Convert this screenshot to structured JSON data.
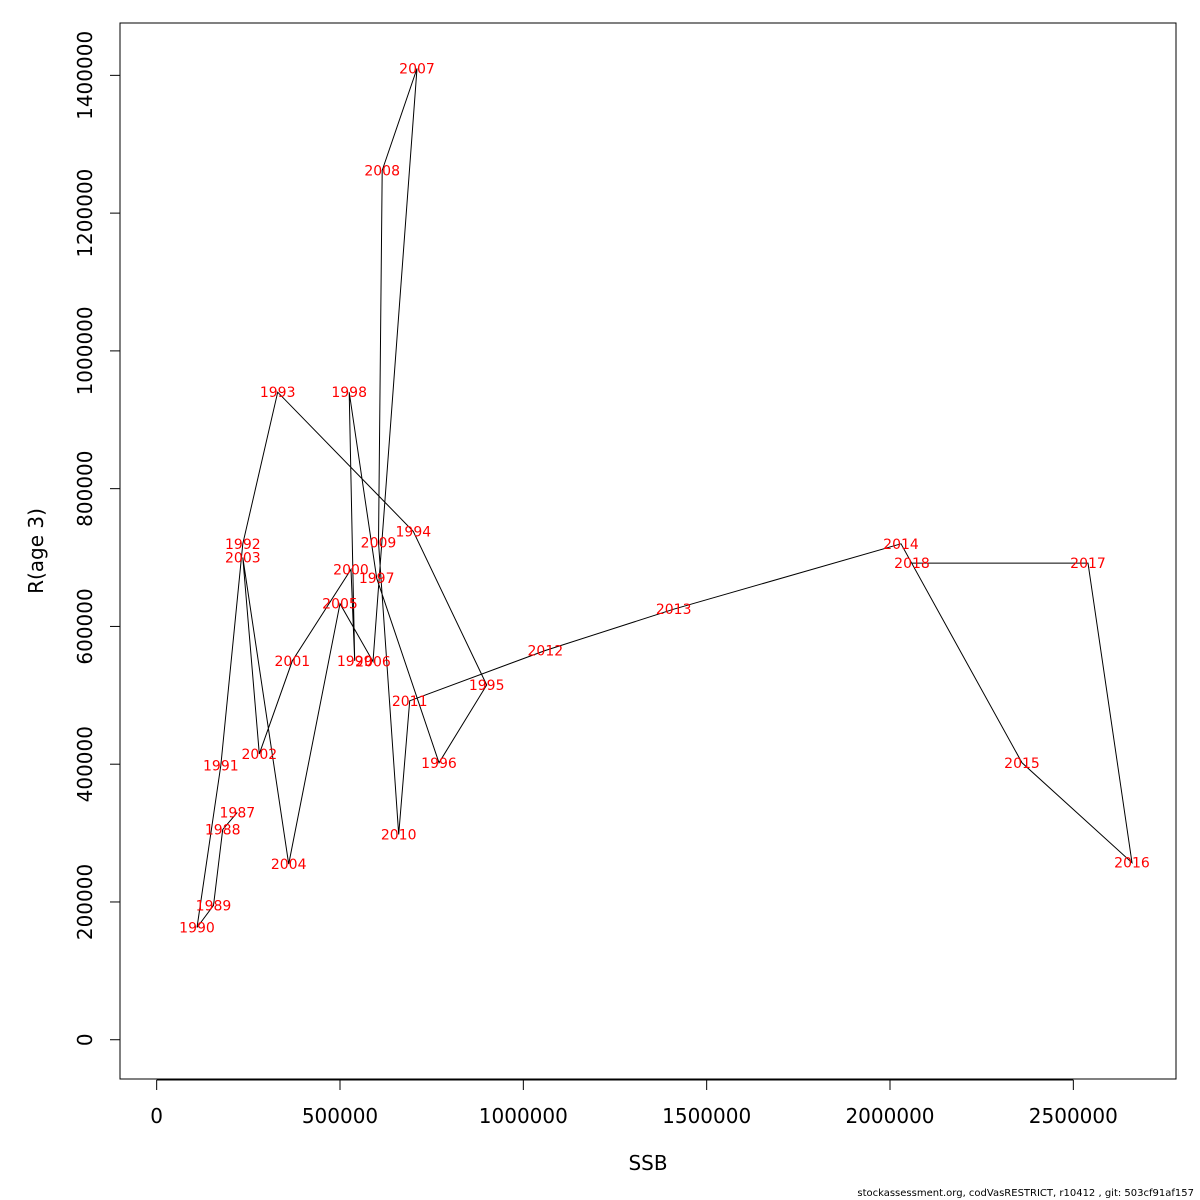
{
  "footer": "stockassessment.org, codVasRESTRICT, r10412 , git: 503cf91af157",
  "chart_data": {
    "type": "line",
    "title": "",
    "xlabel": "SSB",
    "ylabel": "R(age 3)",
    "xlim": [
      -100000,
      2780000
    ],
    "ylim": [
      -57000,
      1476000
    ],
    "xticks": [
      0,
      500000,
      1000000,
      1500000,
      2000000,
      2500000
    ],
    "yticks": [
      0,
      200000,
      400000,
      600000,
      800000,
      1000000,
      1200000,
      1400000
    ],
    "line_color": "#000000",
    "label_color": "#ff0000",
    "points": [
      {
        "year": "1987",
        "x": 220000,
        "y": 330000
      },
      {
        "year": "1988",
        "x": 180000,
        "y": 305000
      },
      {
        "year": "1989",
        "x": 155000,
        "y": 195000
      },
      {
        "year": "1990",
        "x": 110000,
        "y": 163000
      },
      {
        "year": "1991",
        "x": 175000,
        "y": 398000
      },
      {
        "year": "1992",
        "x": 235000,
        "y": 720000
      },
      {
        "year": "1993",
        "x": 330000,
        "y": 940000
      },
      {
        "year": "1994",
        "x": 700000,
        "y": 738000
      },
      {
        "year": "1995",
        "x": 900000,
        "y": 515000
      },
      {
        "year": "1996",
        "x": 770000,
        "y": 402000
      },
      {
        "year": "1997",
        "x": 600000,
        "y": 670000
      },
      {
        "year": "1998",
        "x": 525000,
        "y": 940000
      },
      {
        "year": "1999",
        "x": 540000,
        "y": 550000
      },
      {
        "year": "2000",
        "x": 530000,
        "y": 683000
      },
      {
        "year": "2001",
        "x": 370000,
        "y": 550000
      },
      {
        "year": "2002",
        "x": 280000,
        "y": 415000
      },
      {
        "year": "2003",
        "x": 235000,
        "y": 700000
      },
      {
        "year": "2004",
        "x": 360000,
        "y": 255000
      },
      {
        "year": "2005",
        "x": 500000,
        "y": 633000
      },
      {
        "year": "2006",
        "x": 590000,
        "y": 549000
      },
      {
        "year": "2007",
        "x": 710000,
        "y": 1410000
      },
      {
        "year": "2008",
        "x": 615000,
        "y": 1262000
      },
      {
        "year": "2009",
        "x": 605000,
        "y": 722000
      },
      {
        "year": "2010",
        "x": 660000,
        "y": 298000
      },
      {
        "year": "2011",
        "x": 690000,
        "y": 492000
      },
      {
        "year": "2012",
        "x": 1060000,
        "y": 565000
      },
      {
        "year": "2013",
        "x": 1410000,
        "y": 625000
      },
      {
        "year": "2014",
        "x": 2030000,
        "y": 720000
      },
      {
        "year": "2015",
        "x": 2360000,
        "y": 402000
      },
      {
        "year": "2016",
        "x": 2660000,
        "y": 257000
      },
      {
        "year": "2017",
        "x": 2540000,
        "y": 692000
      },
      {
        "year": "2018",
        "x": 2060000,
        "y": 692000
      }
    ]
  }
}
